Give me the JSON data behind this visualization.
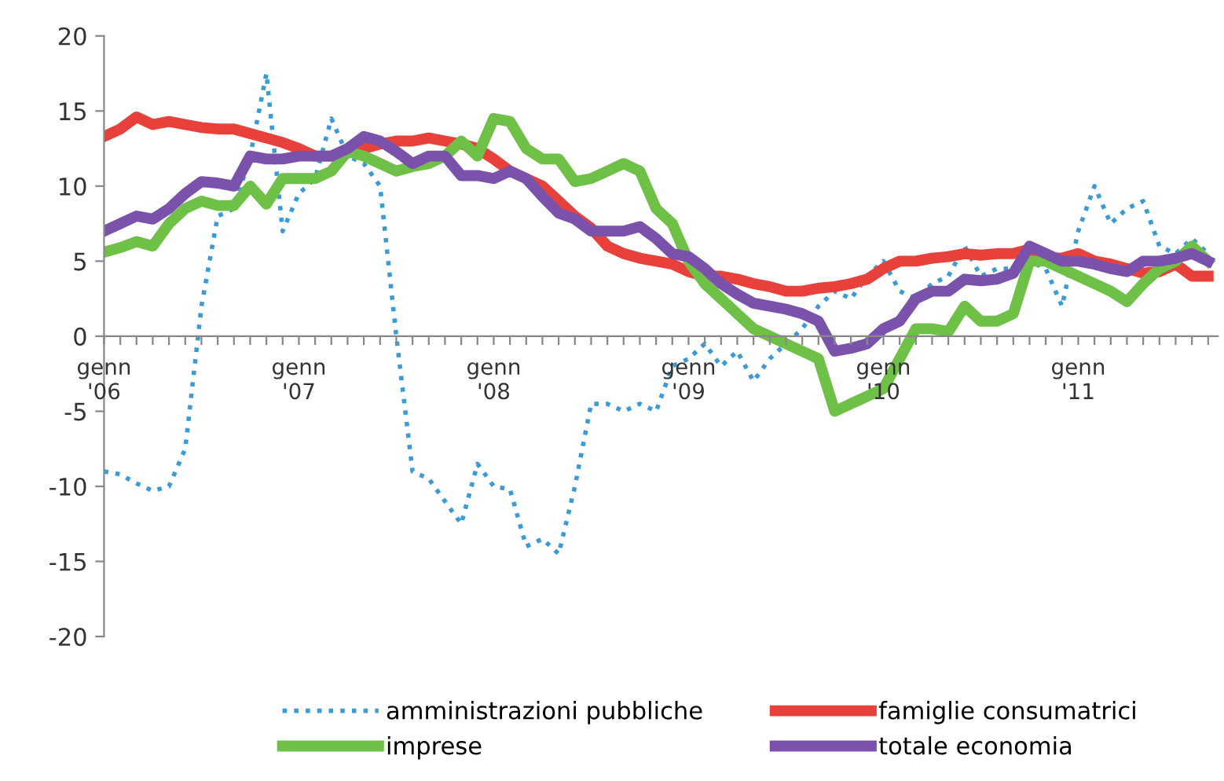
{
  "chart_data": {
    "type": "line",
    "categories": [
      "genn\n'06",
      null,
      null,
      null,
      null,
      null,
      null,
      null,
      null,
      null,
      null,
      null,
      "genn\n'07",
      null,
      null,
      null,
      null,
      null,
      null,
      null,
      null,
      null,
      null,
      null,
      "genn\n'08",
      null,
      null,
      null,
      null,
      null,
      null,
      null,
      null,
      null,
      null,
      null,
      "genn\n'09",
      null,
      null,
      null,
      null,
      null,
      null,
      null,
      null,
      null,
      null,
      null,
      "genn\n'10",
      null,
      null,
      null,
      null,
      null,
      null,
      null,
      null,
      null,
      null,
      null,
      "genn\n'11",
      null,
      null,
      null,
      null,
      null,
      null,
      null,
      null
    ],
    "series": [
      {
        "name": "amministrazioni pubbliche",
        "color": "#3a9bd5",
        "line_style": "dotted",
        "values": [
          -9.0,
          -9.2,
          -9.8,
          -10.3,
          -10.0,
          -7.5,
          2.0,
          8.0,
          8.5,
          12.0,
          17.5,
          7.0,
          9.5,
          10.5,
          14.5,
          12.0,
          11.5,
          10.0,
          0.0,
          -9.0,
          -9.5,
          -11.0,
          -12.5,
          -8.5,
          -10.0,
          -10.2,
          -14.0,
          -13.5,
          -14.5,
          -10.0,
          -4.5,
          -4.5,
          -5.0,
          -4.5,
          -5.0,
          -2.0,
          -1.5,
          -0.5,
          -2.0,
          -1.0,
          -3.0,
          -1.5,
          -0.5,
          0.5,
          2.0,
          3.0,
          2.5,
          4.0,
          5.0,
          3.0,
          2.5,
          3.5,
          4.0,
          6.0,
          4.0,
          4.5,
          4.5,
          5.0,
          4.5,
          2.0,
          7.0,
          10.0,
          7.5,
          8.5,
          9.0,
          6.0,
          5.5,
          6.5,
          5.5
        ]
      },
      {
        "name": "famiglie consumatrici",
        "color": "#e8413c",
        "line_style": "solid",
        "values": [
          13.3,
          13.8,
          14.6,
          14.1,
          14.3,
          14.1,
          13.9,
          13.8,
          13.8,
          13.5,
          13.2,
          12.9,
          12.5,
          12.0,
          12.0,
          12.2,
          12.5,
          12.8,
          13.0,
          13.0,
          13.2,
          13.0,
          12.8,
          12.5,
          11.8,
          11.0,
          10.5,
          10.0,
          9.0,
          8.0,
          7.2,
          6.0,
          5.5,
          5.2,
          5.0,
          4.8,
          4.3,
          4.0,
          4.0,
          3.8,
          3.5,
          3.3,
          3.0,
          3.0,
          3.2,
          3.3,
          3.5,
          3.8,
          4.5,
          5.0,
          5.0,
          5.2,
          5.3,
          5.5,
          5.4,
          5.5,
          5.5,
          5.8,
          5.2,
          5.2,
          5.5,
          5.0,
          4.8,
          4.5,
          4.2,
          4.3,
          4.8,
          4.0,
          4.0
        ]
      },
      {
        "name": "imprese",
        "color": "#6ec046",
        "line_style": "solid",
        "values": [
          5.6,
          5.9,
          6.3,
          6.0,
          7.5,
          8.5,
          9.0,
          8.7,
          8.7,
          10.0,
          8.8,
          10.5,
          10.5,
          10.5,
          11.0,
          12.3,
          12.0,
          11.5,
          11.0,
          11.3,
          11.5,
          12.0,
          13.0,
          12.0,
          14.5,
          14.3,
          12.5,
          11.8,
          11.8,
          10.3,
          10.5,
          11.0,
          11.5,
          11.0,
          8.5,
          7.5,
          5.0,
          3.5,
          2.5,
          1.5,
          0.5,
          0.0,
          -0.5,
          -1.0,
          -1.5,
          -5.0,
          -4.5,
          -4.0,
          -3.5,
          -1.5,
          0.5,
          0.5,
          0.3,
          2.0,
          1.0,
          1.0,
          1.5,
          5.0,
          5.0,
          4.5,
          4.0,
          3.5,
          3.0,
          2.3,
          3.5,
          4.5,
          5.0,
          6.0,
          5.0
        ]
      },
      {
        "name": "totale economia",
        "color": "#7b52ab",
        "line_style": "solid",
        "values": [
          7.0,
          7.5,
          8.0,
          7.8,
          8.5,
          9.5,
          10.3,
          10.2,
          10.0,
          12.0,
          11.8,
          11.8,
          12.0,
          12.0,
          12.0,
          12.5,
          13.3,
          13.0,
          12.3,
          11.5,
          12.0,
          12.0,
          10.7,
          10.7,
          10.5,
          11.0,
          10.5,
          9.3,
          8.2,
          7.8,
          7.0,
          7.0,
          7.0,
          7.3,
          6.5,
          5.5,
          5.3,
          4.5,
          3.5,
          2.8,
          2.2,
          2.0,
          1.8,
          1.5,
          1.0,
          -1.0,
          -0.8,
          -0.5,
          0.5,
          1.0,
          2.5,
          3.0,
          3.0,
          3.8,
          3.7,
          3.8,
          4.2,
          6.0,
          5.5,
          5.0,
          5.0,
          4.8,
          4.5,
          4.3,
          5.0,
          5.0,
          5.2,
          5.5,
          5.0
        ]
      }
    ],
    "ylim": [
      -20,
      20
    ],
    "yticks": [
      -20,
      -15,
      -10,
      -5,
      0,
      5,
      10,
      15,
      20
    ],
    "grid": false,
    "legend": "bottom",
    "marker": "none"
  }
}
